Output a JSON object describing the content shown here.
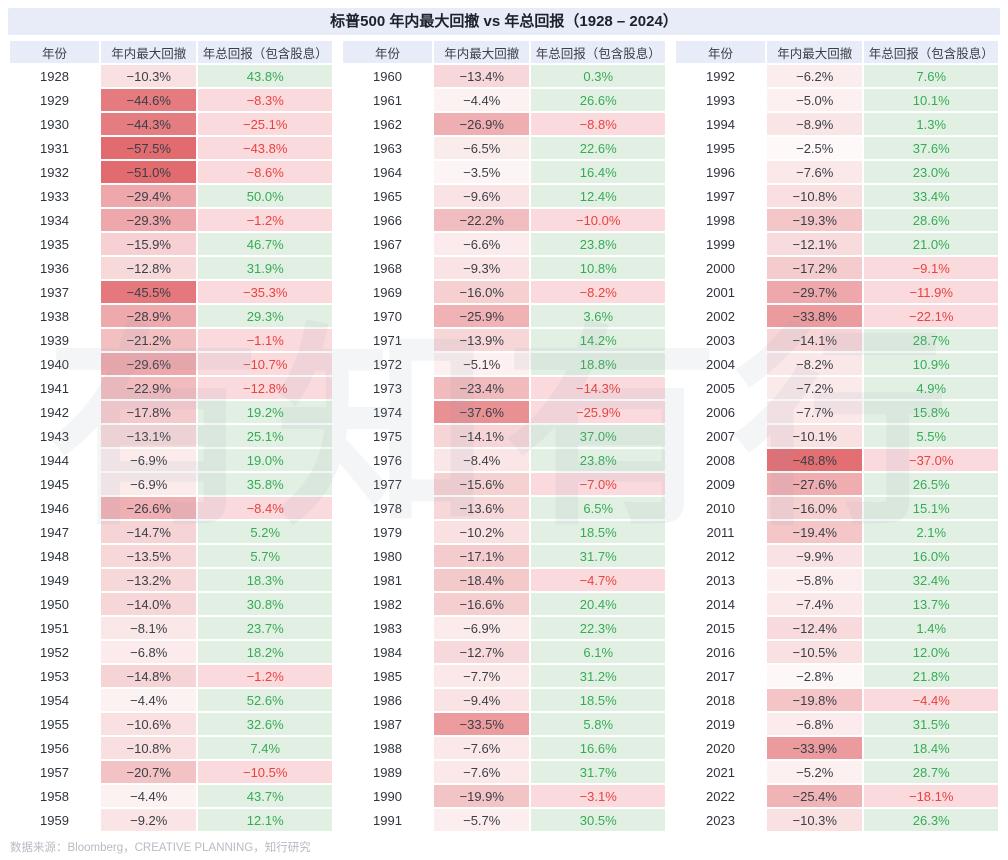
{
  "title": "标普500 年内最大回撤 vs 年总回报（1928 – 2024）",
  "footer": "数据来源：Bloomberg，CREATIVE PLANNING，知行研究",
  "watermark": "有知有行",
  "columns": [
    "年份",
    "年内最大回撤",
    "年总回报（包含股息）"
  ],
  "colors": {
    "band_bg": "#e8ecf8",
    "year_text": "#30353d",
    "drawdown_text": "#3a3f47",
    "drawdown_max_bg": "#e26b70",
    "positive_return_bg": "#e1f0e2",
    "negative_return_bg": "#fadadd",
    "positive_return_text": "#36ab57",
    "negative_return_text": "#e9423f"
  },
  "chart_data": {
    "type": "table",
    "title": "标普500 年内最大回撤 vs 年总回报（1928 – 2024）",
    "columns": [
      "年份",
      "年内最大回撤",
      "年总回报（包含股息）"
    ],
    "value_unit": "%",
    "groups": [
      {
        "rows": [
          [
            1928,
            -10.3,
            43.8
          ],
          [
            1929,
            -44.6,
            -8.3
          ],
          [
            1930,
            -44.3,
            -25.1
          ],
          [
            1931,
            -57.5,
            -43.8
          ],
          [
            1932,
            -51.0,
            -8.6
          ],
          [
            1933,
            -29.4,
            50.0
          ],
          [
            1934,
            -29.3,
            -1.2
          ],
          [
            1935,
            -15.9,
            46.7
          ],
          [
            1936,
            -12.8,
            31.9
          ],
          [
            1937,
            -45.5,
            -35.3
          ],
          [
            1938,
            -28.9,
            29.3
          ],
          [
            1939,
            -21.2,
            -1.1
          ],
          [
            1940,
            -29.6,
            -10.7
          ],
          [
            1941,
            -22.9,
            -12.8
          ],
          [
            1942,
            -17.8,
            19.2
          ],
          [
            1943,
            -13.1,
            25.1
          ],
          [
            1944,
            -6.9,
            19.0
          ],
          [
            1945,
            -6.9,
            35.8
          ],
          [
            1946,
            -26.6,
            -8.4
          ],
          [
            1947,
            -14.7,
            5.2
          ],
          [
            1948,
            -13.5,
            5.7
          ],
          [
            1949,
            -13.2,
            18.3
          ],
          [
            1950,
            -14.0,
            30.8
          ],
          [
            1951,
            -8.1,
            23.7
          ],
          [
            1952,
            -6.8,
            18.2
          ],
          [
            1953,
            -14.8,
            -1.2
          ],
          [
            1954,
            -4.4,
            52.6
          ],
          [
            1955,
            -10.6,
            32.6
          ],
          [
            1956,
            -10.8,
            7.4
          ],
          [
            1957,
            -20.7,
            -10.5
          ],
          [
            1958,
            -4.4,
            43.7
          ],
          [
            1959,
            -9.2,
            12.1
          ]
        ]
      },
      {
        "rows": [
          [
            1960,
            -13.4,
            0.3
          ],
          [
            1961,
            -4.4,
            26.6
          ],
          [
            1962,
            -26.9,
            -8.8
          ],
          [
            1963,
            -6.5,
            22.6
          ],
          [
            1964,
            -3.5,
            16.4
          ],
          [
            1965,
            -9.6,
            12.4
          ],
          [
            1966,
            -22.2,
            -10.0
          ],
          [
            1967,
            -6.6,
            23.8
          ],
          [
            1968,
            -9.3,
            10.8
          ],
          [
            1969,
            -16.0,
            -8.2
          ],
          [
            1970,
            -25.9,
            3.6
          ],
          [
            1971,
            -13.9,
            14.2
          ],
          [
            1972,
            -5.1,
            18.8
          ],
          [
            1973,
            -23.4,
            -14.3
          ],
          [
            1974,
            -37.6,
            -25.9
          ],
          [
            1975,
            -14.1,
            37.0
          ],
          [
            1976,
            -8.4,
            23.8
          ],
          [
            1977,
            -15.6,
            -7.0
          ],
          [
            1978,
            -13.6,
            6.5
          ],
          [
            1979,
            -10.2,
            18.5
          ],
          [
            1980,
            -17.1,
            31.7
          ],
          [
            1981,
            -18.4,
            -4.7
          ],
          [
            1982,
            -16.6,
            20.4
          ],
          [
            1983,
            -6.9,
            22.3
          ],
          [
            1984,
            -12.7,
            6.1
          ],
          [
            1985,
            -7.7,
            31.2
          ],
          [
            1986,
            -9.4,
            18.5
          ],
          [
            1987,
            -33.5,
            5.8
          ],
          [
            1988,
            -7.6,
            16.6
          ],
          [
            1989,
            -7.6,
            31.7
          ],
          [
            1990,
            -19.9,
            -3.1
          ],
          [
            1991,
            -5.7,
            30.5
          ]
        ]
      },
      {
        "rows": [
          [
            1992,
            -6.2,
            7.6
          ],
          [
            1993,
            -5.0,
            10.1
          ],
          [
            1994,
            -8.9,
            1.3
          ],
          [
            1995,
            -2.5,
            37.6
          ],
          [
            1996,
            -7.6,
            23.0
          ],
          [
            1997,
            -10.8,
            33.4
          ],
          [
            1998,
            -19.3,
            28.6
          ],
          [
            1999,
            -12.1,
            21.0
          ],
          [
            2000,
            -17.2,
            -9.1
          ],
          [
            2001,
            -29.7,
            -11.9
          ],
          [
            2002,
            -33.8,
            -22.1
          ],
          [
            2003,
            -14.1,
            28.7
          ],
          [
            2004,
            -8.2,
            10.9
          ],
          [
            2005,
            -7.2,
            4.9
          ],
          [
            2006,
            -7.7,
            15.8
          ],
          [
            2007,
            -10.1,
            5.5
          ],
          [
            2008,
            -48.8,
            -37.0
          ],
          [
            2009,
            -27.6,
            26.5
          ],
          [
            2010,
            -16.0,
            15.1
          ],
          [
            2011,
            -19.4,
            2.1
          ],
          [
            2012,
            -9.9,
            16.0
          ],
          [
            2013,
            -5.8,
            32.4
          ],
          [
            2014,
            -7.4,
            13.7
          ],
          [
            2015,
            -12.4,
            1.4
          ],
          [
            2016,
            -10.5,
            12.0
          ],
          [
            2017,
            -2.8,
            21.8
          ],
          [
            2018,
            -19.8,
            -4.4
          ],
          [
            2019,
            -6.8,
            31.5
          ],
          [
            2020,
            -33.9,
            18.4
          ],
          [
            2021,
            -5.2,
            28.7
          ],
          [
            2022,
            -25.4,
            -18.1
          ],
          [
            2023,
            -10.3,
            26.3
          ]
        ]
      }
    ]
  }
}
